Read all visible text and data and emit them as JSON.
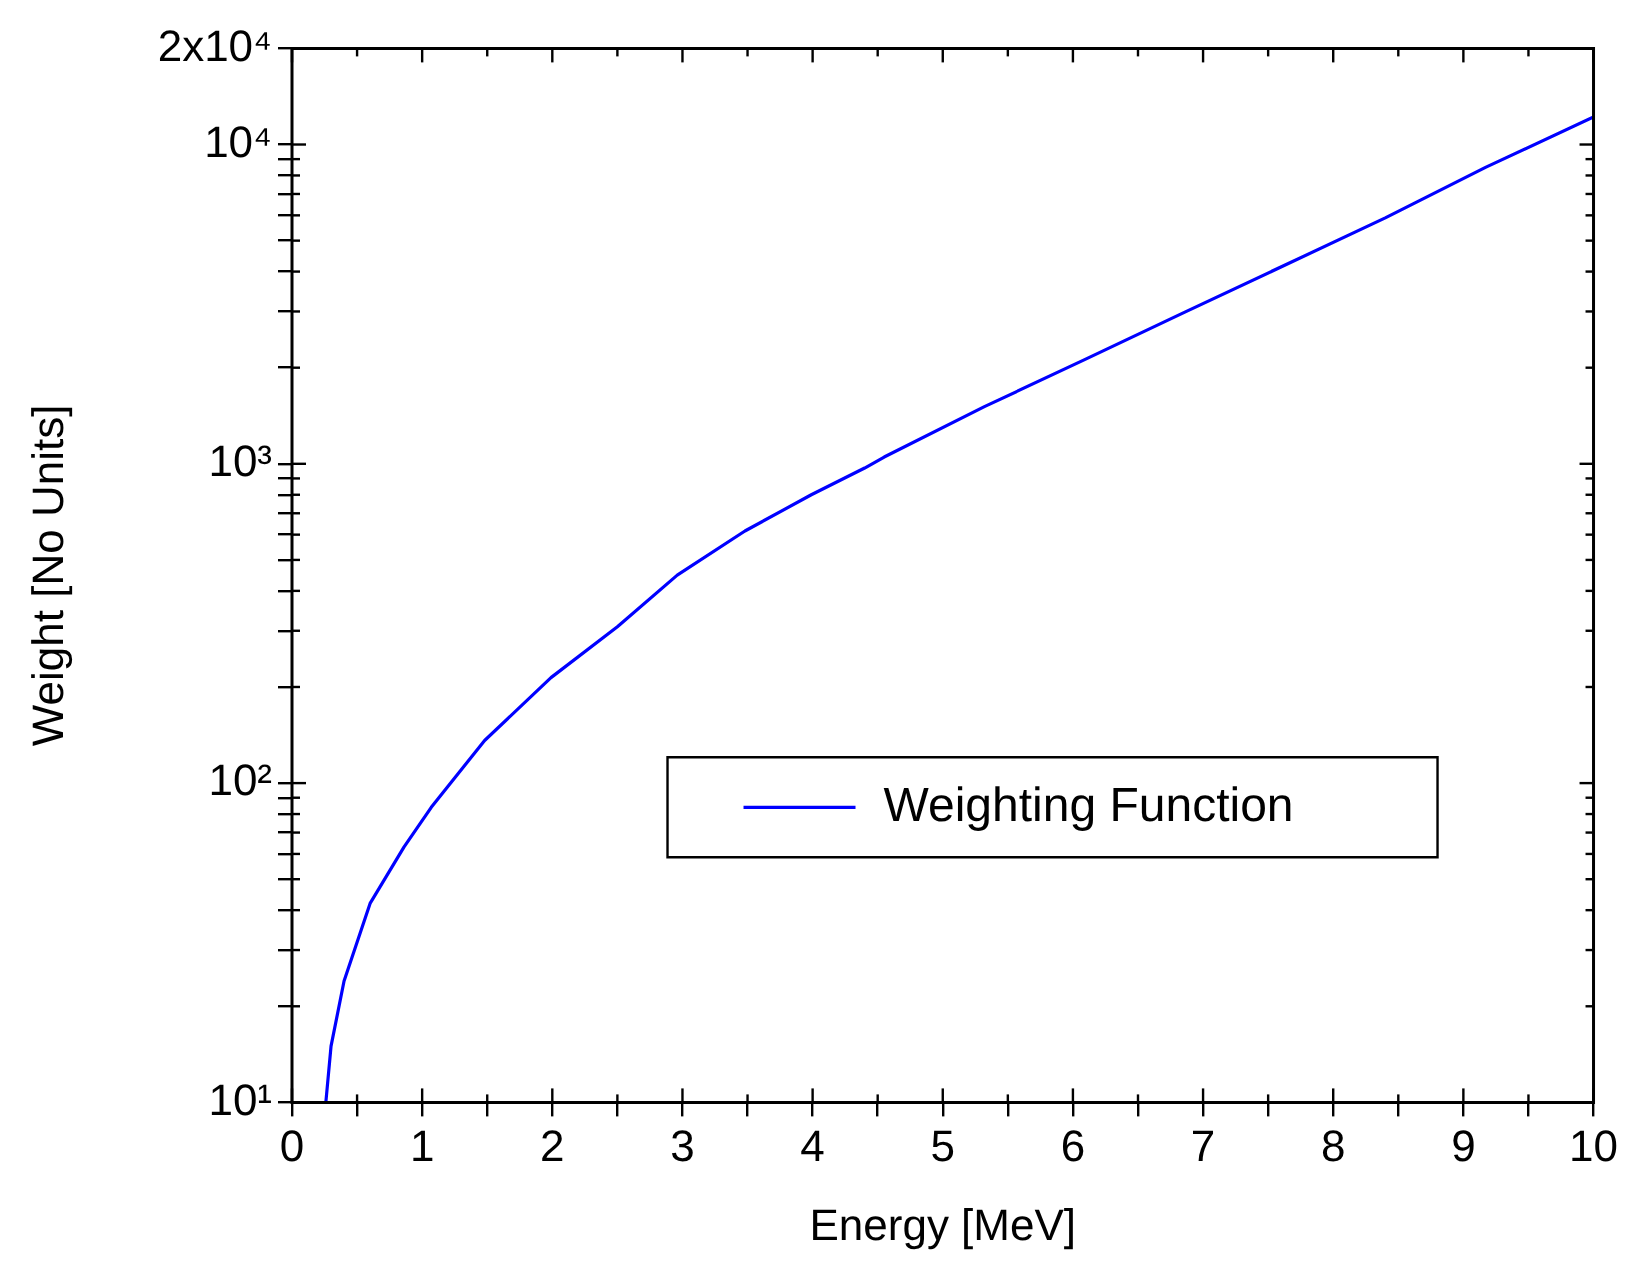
{
  "chart_data": {
    "type": "line",
    "xlabel": "Energy [MeV]",
    "ylabel": "Weight [No Units]",
    "log": "y",
    "legend": "right",
    "marker": "none",
    "line_style": "solid",
    "grid": false,
    "xlim": [
      0,
      10
    ],
    "xticks": [
      0,
      {
        "value": 0.5,
        "label": null
      },
      1,
      {
        "value": 1.5,
        "label": null
      },
      2,
      {
        "value": 2.5,
        "label": null
      },
      3,
      {
        "value": 3.5,
        "label": null
      },
      4,
      {
        "value": 4.5,
        "label": null
      },
      5,
      {
        "value": 5.5,
        "label": null
      },
      6,
      {
        "value": 6.5,
        "label": null
      },
      7,
      {
        "value": 7.5,
        "label": null
      },
      8,
      {
        "value": 8.5,
        "label": null
      },
      9,
      {
        "value": 9.5,
        "label": null
      },
      10
    ],
    "ylim": [
      10,
      20000
    ],
    "yticks": [
      {
        "value": 10,
        "label": "10¹"
      },
      {
        "value": 20,
        "label": null
      },
      {
        "value": 30,
        "label": null
      },
      {
        "value": 40,
        "label": null
      },
      {
        "value": 50,
        "label": null
      },
      {
        "value": 60,
        "label": null
      },
      {
        "value": 70,
        "label": null
      },
      {
        "value": 80,
        "label": null
      },
      {
        "value": 90,
        "label": null
      },
      {
        "value": 100,
        "label": "10²"
      },
      {
        "value": 200,
        "label": null
      },
      {
        "value": 300,
        "label": null
      },
      {
        "value": 400,
        "label": null
      },
      {
        "value": 500,
        "label": null
      },
      {
        "value": 600,
        "label": null
      },
      {
        "value": 700,
        "label": null
      },
      {
        "value": 800,
        "label": null
      },
      {
        "value": 900,
        "label": null
      },
      {
        "value": 1000,
        "label": "10³"
      },
      {
        "value": 2000,
        "label": null
      },
      {
        "value": 3000,
        "label": null
      },
      {
        "value": 4000,
        "label": null
      },
      {
        "value": 5000,
        "label": null
      },
      {
        "value": 6000,
        "label": null
      },
      {
        "value": 7000,
        "label": null
      },
      {
        "value": 8000,
        "label": null
      },
      {
        "value": 9000,
        "label": null
      },
      {
        "value": 10000,
        "label": "10⁴"
      },
      {
        "value": 20000,
        "label": "2x10⁴"
      }
    ],
    "series": [
      {
        "name": "Weighting Function",
        "color": "#0000ff",
        "x": [
          0.26,
          0.3,
          0.4,
          0.6,
          0.86,
          1.07,
          1.48,
          1.99,
          2.5,
          2.96,
          3.48,
          3.99,
          4.4,
          4.55,
          5.32,
          6.09,
          6.86,
          8.4,
          9.17,
          10
        ],
        "values": [
          10,
          15,
          24,
          42,
          63,
          84,
          136,
          214,
          309,
          448,
          616,
          800,
          970,
          1050,
          1510,
          2120,
          2985,
          5890,
          8480,
          12200
        ]
      }
    ]
  }
}
